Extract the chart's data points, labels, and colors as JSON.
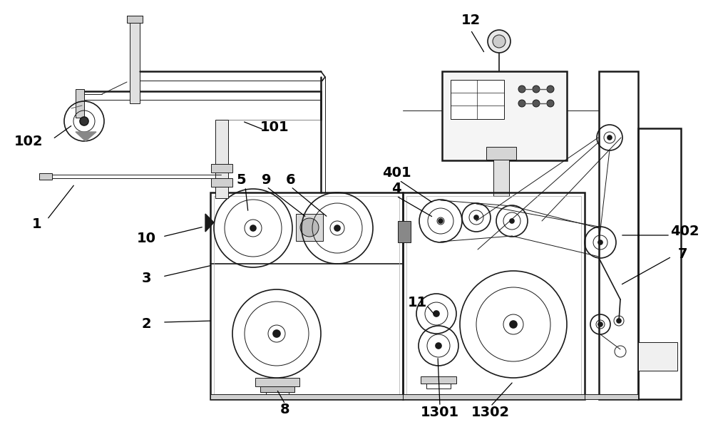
{
  "bg_color": "#ffffff",
  "lc": "#1a1a1a",
  "figsize": [
    10.0,
    6.13
  ],
  "dpi": 100
}
